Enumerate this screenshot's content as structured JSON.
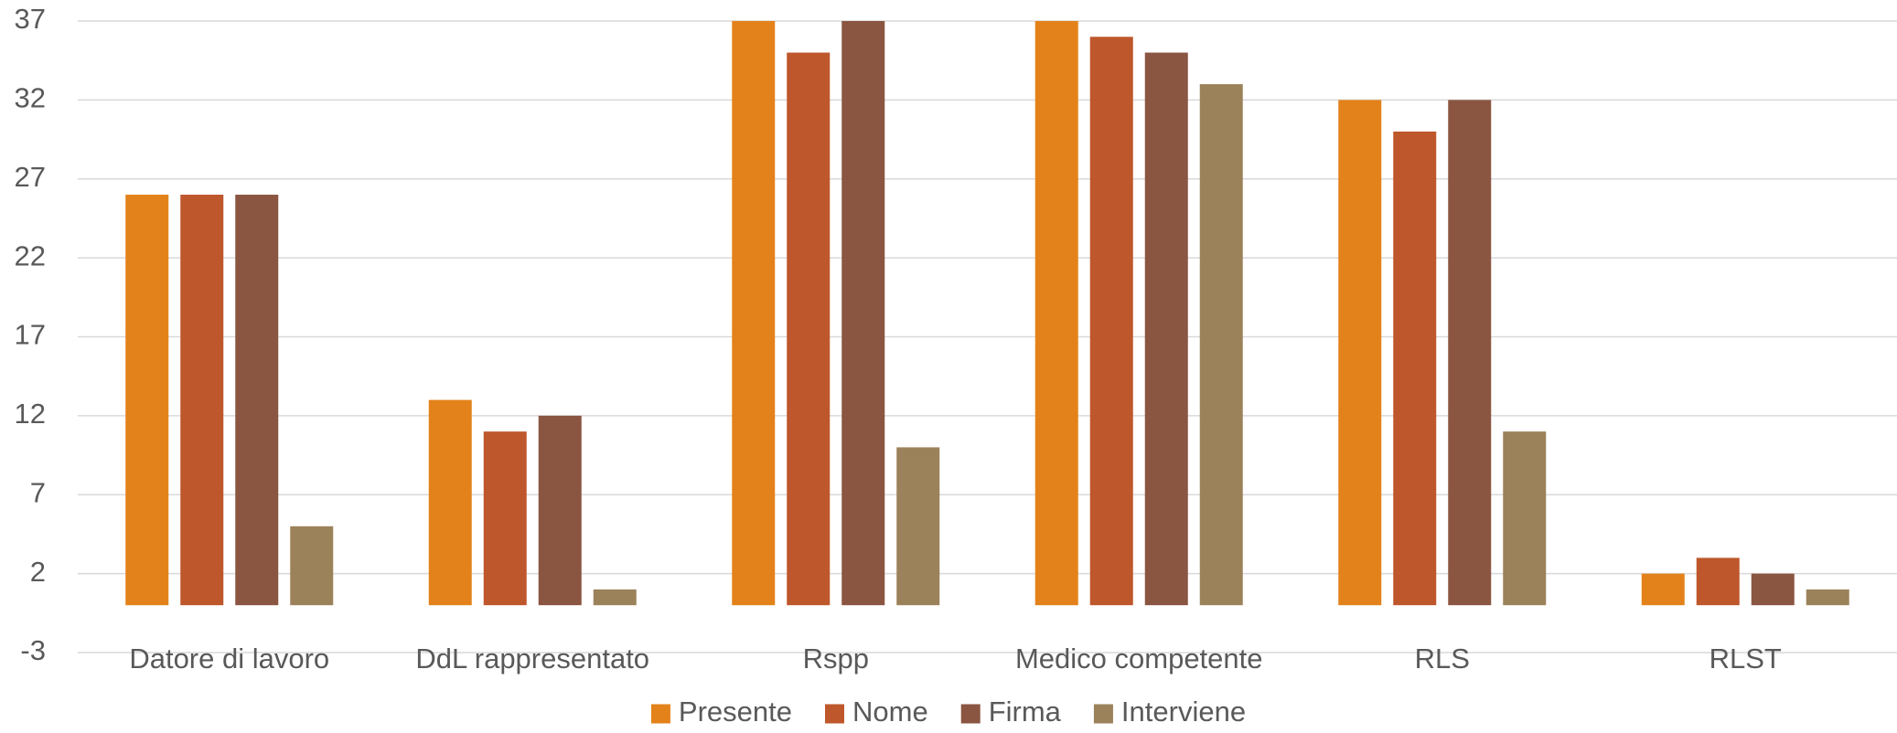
{
  "chart_data": {
    "type": "bar",
    "title": "",
    "xlabel": "",
    "ylabel": "",
    "categories": [
      "Datore di lavoro",
      "DdL rappresentato",
      "Rspp",
      "Medico competente",
      "RLS",
      "RLST"
    ],
    "series": [
      {
        "name": "Presente",
        "color": "#E3821A",
        "values": [
          26,
          13,
          37,
          37,
          32,
          2
        ]
      },
      {
        "name": "Nome",
        "color": "#BE572B",
        "values": [
          26,
          11,
          35,
          36,
          30,
          3
        ]
      },
      {
        "name": "Firma",
        "color": "#8A5541",
        "values": [
          26,
          12,
          37,
          35,
          32,
          2
        ]
      },
      {
        "name": "Interviene",
        "color": "#9B825A",
        "values": [
          5,
          1,
          10,
          33,
          11,
          1
        ]
      }
    ],
    "yticks": [
      "-3",
      "2",
      "7",
      "12",
      "17",
      "22",
      "27",
      "32",
      "37"
    ],
    "ylim": [
      -3,
      37
    ],
    "baseline": 0,
    "grid": true,
    "legend_position": "bottom"
  }
}
